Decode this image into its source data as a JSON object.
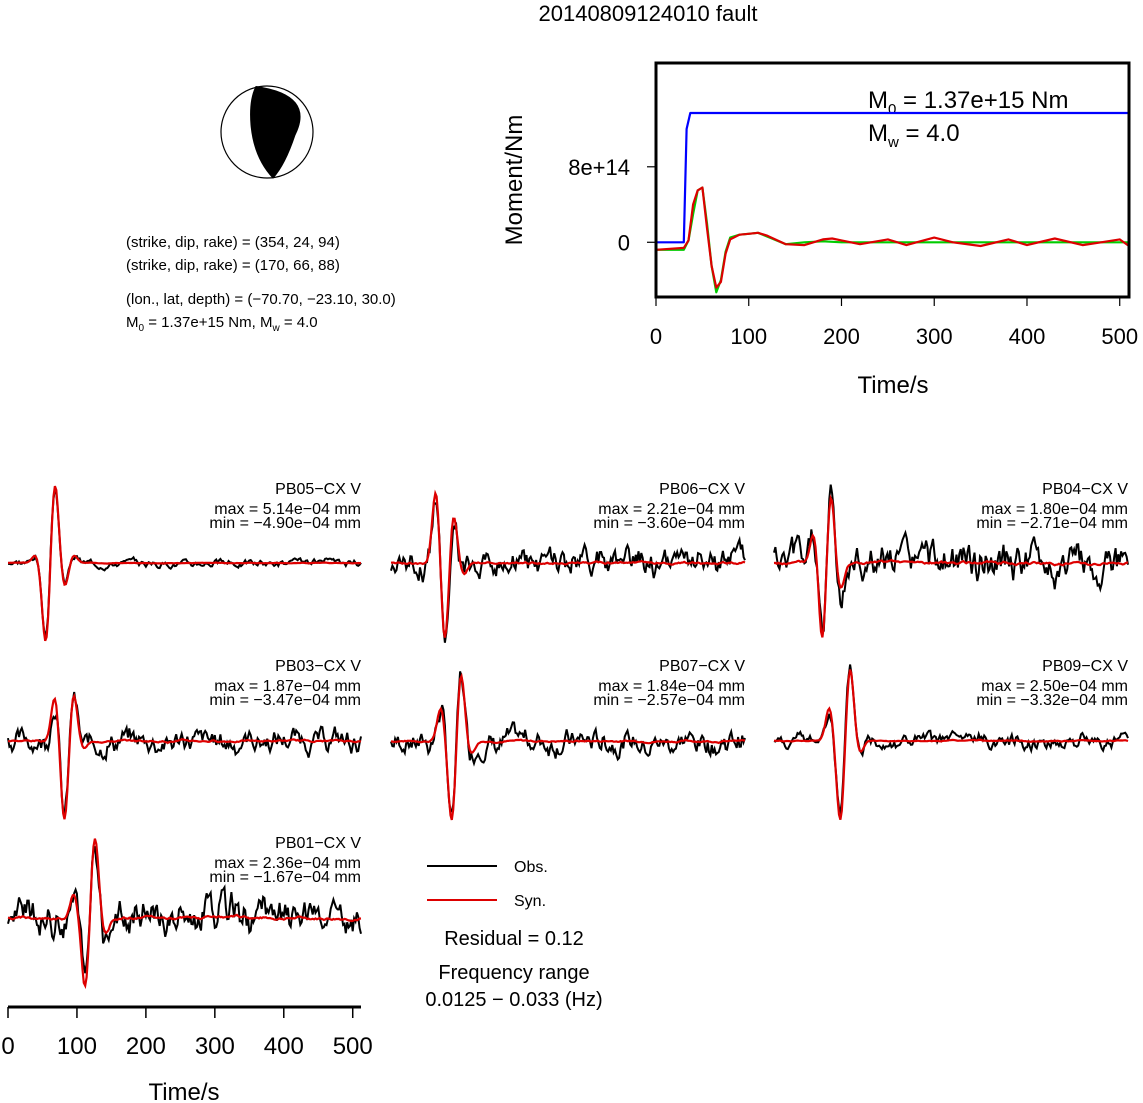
{
  "title": "20140809124010 fault",
  "mechanism": {
    "nodal_plane_1": "(strike, dip, rake) = (354, 24, 94)",
    "nodal_plane_2": "(strike, dip, rake) = (170, 66, 88)",
    "location": "(lon., lat, depth) = (−70.70, −23.10, 30.0)",
    "moment_prefix": "M",
    "moment_sub": "0",
    "moment_value": " = 1.37e+15 Nm, M",
    "mw_sub": "w",
    "mw_value": " = 4.0",
    "fill_color": "#000000"
  },
  "moment_plot": {
    "ylabel": "Moment/Nm",
    "xlabel": "Time/s",
    "m0_prefix": "M",
    "m0_sub": "0",
    "m0_value": " = 1.37e+15 Nm",
    "mw_prefix": "M",
    "mw_sub": "w",
    "mw_value": " = 4.0",
    "yticks": [
      0,
      800000000000000.0
    ],
    "ytick_labels": [
      "0",
      "8e+14"
    ],
    "xticks": [
      0,
      100,
      200,
      300,
      400,
      500
    ],
    "xtick_labels": [
      "0",
      "100",
      "200",
      "300",
      "400",
      "500"
    ]
  },
  "waveforms": {
    "legend_obs": "Obs.",
    "legend_syn": "Syn.",
    "residual": "Residual = 0.12",
    "freq_label": "Frequency range",
    "freq_range": "0.0125 − 0.033 (Hz)",
    "xlabel": "Time/s",
    "xticks": [
      0,
      100,
      200,
      300,
      400,
      500
    ],
    "xtick_labels": [
      "0",
      "100",
      "200",
      "300",
      "400",
      "500"
    ],
    "stations": [
      {
        "name": "PB05−CX V",
        "max": "max = 5.14e−04 mm",
        "min": "min = −4.90e−04 mm"
      },
      {
        "name": "PB06−CX V",
        "max": "max = 2.21e−04 mm",
        "min": "min = −3.60e−04 mm"
      },
      {
        "name": "PB04−CX V",
        "max": "max = 1.80e−04 mm",
        "min": "min = −2.71e−04 mm"
      },
      {
        "name": "PB03−CX V",
        "max": "max = 1.87e−04 mm",
        "min": "min = −3.47e−04 mm"
      },
      {
        "name": "PB07−CX V",
        "max": "max = 1.84e−04 mm",
        "min": "min = −2.57e−04 mm"
      },
      {
        "name": "PB09−CX V",
        "max": "max = 2.50e−04 mm",
        "min": "min = −3.32e−04 mm"
      },
      {
        "name": "PB01−CX V",
        "max": "max = 2.36e−04 mm",
        "min": "min = −1.67e−04 mm"
      }
    ]
  },
  "chart_data": [
    {
      "type": "line",
      "ylabel": "Moment/Nm",
      "xlabel": "Time/s",
      "xlim": [
        0,
        510
      ],
      "ylim": [
        -580000000000000.0,
        1900000000000000.0
      ],
      "series": [
        {
          "color": "#0000ff",
          "x": [
            0,
            30,
            33,
            37,
            510
          ],
          "y": [
            0,
            0,
            1200000000000000.0,
            1370000000000000.0,
            1370000000000000.0
          ]
        },
        {
          "color": "#00cc00",
          "x": [
            0,
            30,
            35,
            40,
            45,
            50,
            55,
            60,
            65,
            70,
            75,
            80,
            90,
            100,
            110,
            120,
            140,
            160,
            180,
            200,
            510
          ],
          "y": [
            -80000000000000.0,
            -80000000000000.0,
            20000000000000.0,
            300000000000000.0,
            550000000000000.0,
            580000000000000.0,
            200000000000000.0,
            -250000000000000.0,
            -530000000000000.0,
            -400000000000000.0,
            -100000000000000.0,
            50000000000000.0,
            80000000000000.0,
            90000000000000.0,
            100000000000000.0,
            60000000000000.0,
            -20000000000000.0,
            0,
            10000000000000.0,
            0,
            0
          ]
        },
        {
          "color": "#dd0000",
          "x": [
            0,
            30,
            35,
            40,
            45,
            50,
            55,
            60,
            65,
            70,
            75,
            80,
            90,
            100,
            110,
            120,
            140,
            160,
            180,
            190,
            200,
            220,
            250,
            270,
            300,
            320,
            350,
            380,
            400,
            430,
            460,
            480,
            500,
            510
          ],
          "y": [
            -80000000000000.0,
            -60000000000000.0,
            20000000000000.0,
            400000000000000.0,
            550000000000000.0,
            580000000000000.0,
            150000000000000.0,
            -250000000000000.0,
            -480000000000000.0,
            -420000000000000.0,
            -120000000000000.0,
            30000000000000.0,
            80000000000000.0,
            90000000000000.0,
            100000000000000.0,
            70000000000000.0,
            -20000000000000.0,
            -30000000000000.0,
            30000000000000.0,
            40000000000000.0,
            20000000000000.0,
            -20000000000000.0,
            30000000000000.0,
            -30000000000000.0,
            50000000000000.0,
            0,
            -40000000000000.0,
            30000000000000.0,
            -30000000000000.0,
            40000000000000.0,
            -30000000000000.0,
            0,
            30000000000000.0,
            -40000000000000.0
          ]
        }
      ]
    },
    {
      "type": "line",
      "xlabel": "Time/s",
      "xlim": [
        0,
        512
      ],
      "ylim": [
        -1,
        1
      ],
      "series": [
        {
          "color": "#000000"
        },
        {
          "color": "#dd0000"
        }
      ],
      "stations": [
        {
          "peaks": [
            [
              40,
              0.1
            ],
            [
              55,
              -1.0
            ],
            [
              68,
              1.0
            ],
            [
              82,
              -0.3
            ],
            [
              95,
              0.1
            ]
          ],
          "noise": 0.03
        },
        {
          "peaks": [
            [
              65,
              0.9
            ],
            [
              78,
              -1.0
            ],
            [
              90,
              0.6
            ],
            [
              105,
              -0.15
            ]
          ],
          "noise": 0.12
        },
        {
          "peaks": [
            [
              58,
              0.4
            ],
            [
              70,
              -1.0
            ],
            [
              82,
              0.9
            ],
            [
              96,
              -0.3
            ]
          ],
          "noise": 0.16
        },
        {
          "peaks": [
            [
              68,
              0.55
            ],
            [
              82,
              -1.0
            ],
            [
              95,
              0.6
            ],
            [
              110,
              -0.1
            ]
          ],
          "noise": 0.1
        },
        {
          "peaks": [
            [
              72,
              0.4
            ],
            [
              88,
              -1.0
            ],
            [
              101,
              0.85
            ],
            [
              116,
              -0.15
            ]
          ],
          "noise": 0.1
        },
        {
          "peaks": [
            [
              80,
              0.4
            ],
            [
              96,
              -1.0
            ],
            [
              110,
              0.9
            ],
            [
              124,
              -0.15
            ]
          ],
          "noise": 0.06
        },
        {
          "peaks": [
            [
              95,
              0.3
            ],
            [
              112,
              -0.85
            ],
            [
              126,
              1.0
            ],
            [
              142,
              -0.2
            ]
          ],
          "noise": 0.16
        }
      ]
    }
  ]
}
